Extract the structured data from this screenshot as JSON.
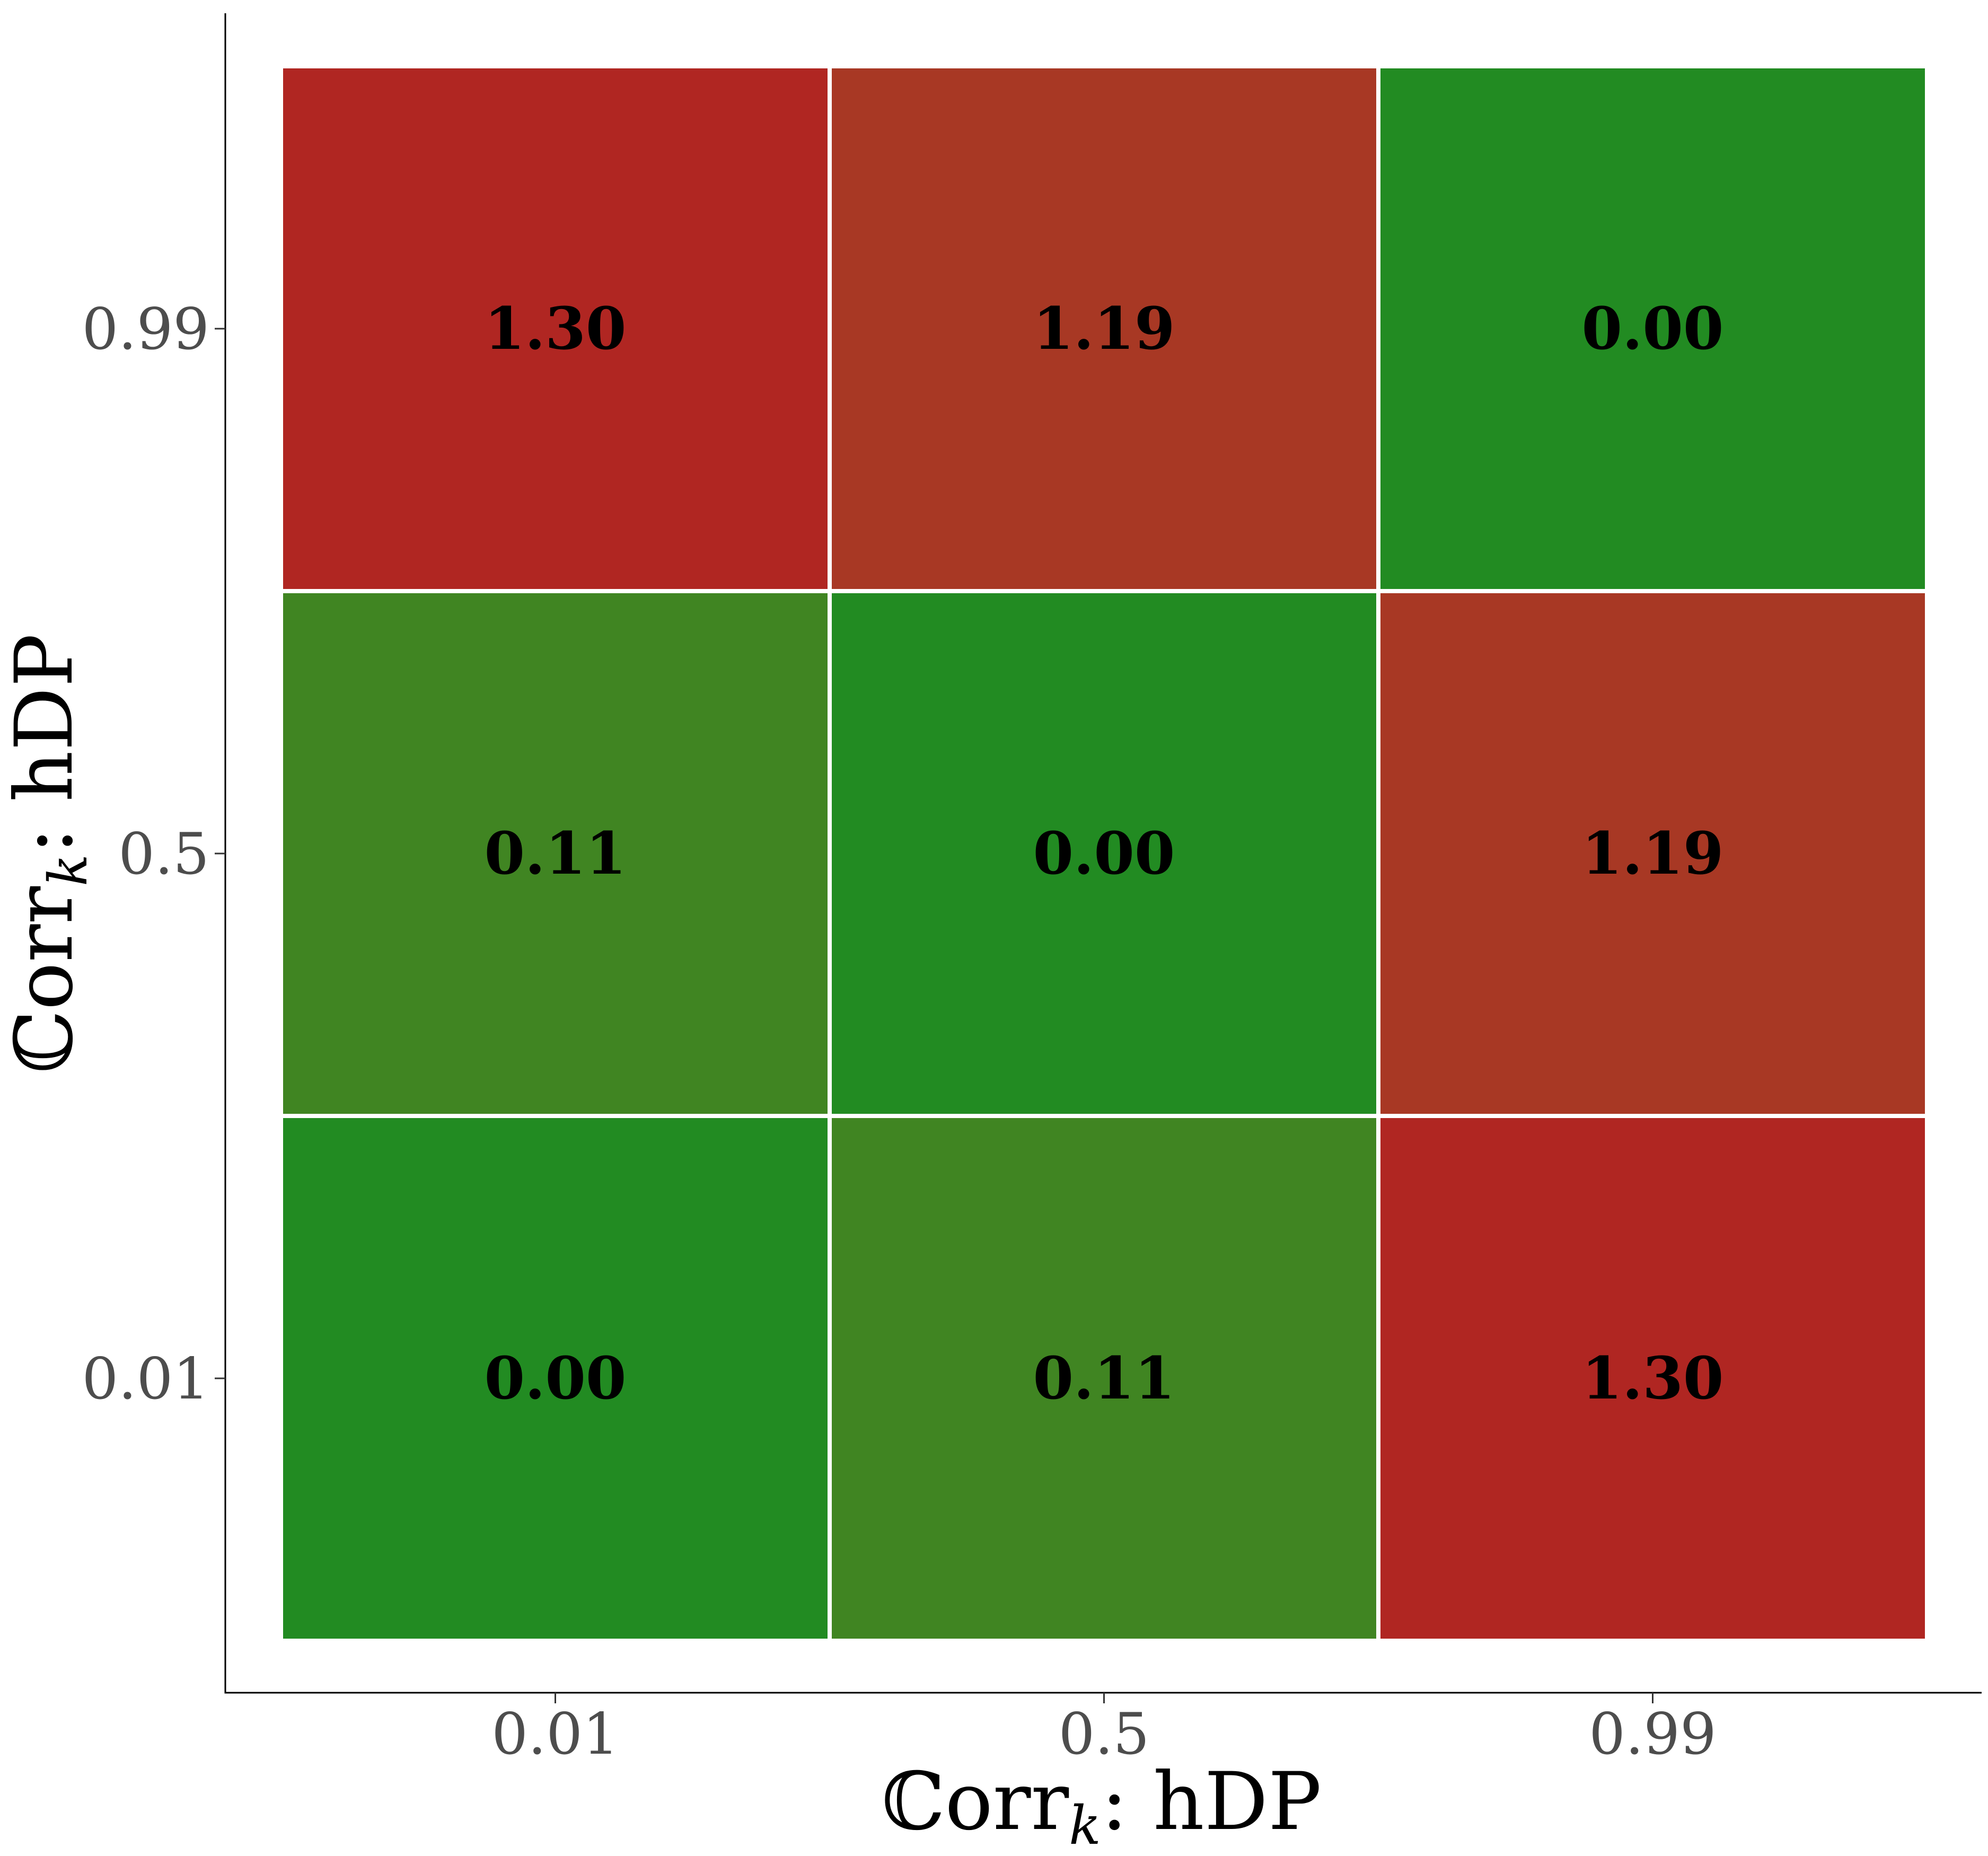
{
  "chart_data": {
    "type": "heatmap",
    "x_categories": [
      "0.01",
      "0.5",
      "0.99"
    ],
    "y_categories": [
      "0.01",
      "0.5",
      "0.99"
    ],
    "x_title": {
      "prefix": "ℂorr",
      "sub": "k",
      "suffix": ":  hDP"
    },
    "y_title": {
      "prefix": "ℂorr",
      "sub": "k",
      "suffix": ":  hDP"
    },
    "cells": [
      {
        "x": "0.01",
        "y": "0.01",
        "value": 0.0,
        "label": "0.00"
      },
      {
        "x": "0.5",
        "y": "0.01",
        "value": 0.11,
        "label": "0.11"
      },
      {
        "x": "0.99",
        "y": "0.01",
        "value": 1.3,
        "label": "1.30"
      },
      {
        "x": "0.01",
        "y": "0.5",
        "value": 0.11,
        "label": "0.11"
      },
      {
        "x": "0.5",
        "y": "0.5",
        "value": 0.0,
        "label": "0.00"
      },
      {
        "x": "0.99",
        "y": "0.5",
        "value": 1.19,
        "label": "1.19"
      },
      {
        "x": "0.01",
        "y": "0.99",
        "value": 1.3,
        "label": "1.30"
      },
      {
        "x": "0.5",
        "y": "0.99",
        "value": 1.19,
        "label": "1.19"
      },
      {
        "x": "0.99",
        "y": "0.99",
        "value": 0.0,
        "label": "0.00"
      }
    ],
    "color_scale": {
      "low": "#228b22",
      "mid": "#408522",
      "high_mid": "#a83824",
      "high": "#b02622"
    },
    "grid": false,
    "legend": "none"
  }
}
